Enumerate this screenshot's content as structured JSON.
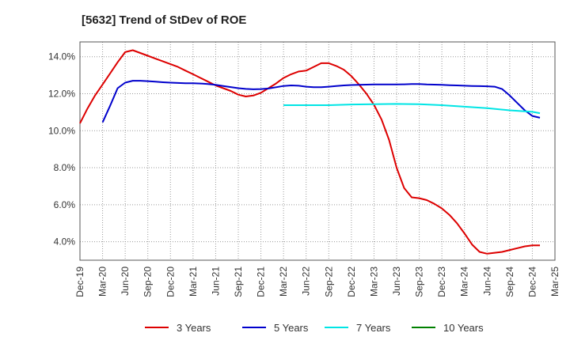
{
  "chart_data": {
    "type": "line",
    "title": "[5632]  Trend of StDev of ROE",
    "xlabel": "",
    "ylabel": "",
    "x_ticks": [
      "Dec-19",
      "Mar-20",
      "Jun-20",
      "Sep-20",
      "Dec-20",
      "Mar-21",
      "Jun-21",
      "Sep-21",
      "Dec-21",
      "Mar-22",
      "Jun-22",
      "Sep-22",
      "Dec-22",
      "Mar-23",
      "Jun-23",
      "Sep-23",
      "Dec-23",
      "Mar-24",
      "Jun-24",
      "Sep-24",
      "Dec-24",
      "Mar-25"
    ],
    "y_ticks": [
      4.0,
      6.0,
      8.0,
      10.0,
      12.0,
      14.0
    ],
    "y_tick_labels": [
      "4.0%",
      "6.0%",
      "8.0%",
      "10.0%",
      "12.0%",
      "14.0%"
    ],
    "ylim": [
      3.0,
      14.8
    ],
    "grid": true,
    "legend_position": "bottom",
    "series": [
      {
        "name": "3 Years",
        "color": "#dd0000",
        "points": [
          [
            "Dec-19",
            10.4
          ],
          [
            "Jan-20",
            11.2
          ],
          [
            "Feb-20",
            11.9
          ],
          [
            "Mar-20",
            12.5
          ],
          [
            "Apr-20",
            13.1
          ],
          [
            "May-20",
            13.7
          ],
          [
            "Jun-20",
            14.25
          ],
          [
            "Jul-20",
            14.35
          ],
          [
            "Aug-20",
            14.2
          ],
          [
            "Sep-20",
            14.05
          ],
          [
            "Oct-20",
            13.9
          ],
          [
            "Nov-20",
            13.75
          ],
          [
            "Dec-20",
            13.6
          ],
          [
            "Jan-21",
            13.45
          ],
          [
            "Feb-21",
            13.25
          ],
          [
            "Mar-21",
            13.05
          ],
          [
            "Apr-21",
            12.85
          ],
          [
            "May-21",
            12.65
          ],
          [
            "Jun-21",
            12.45
          ],
          [
            "Jul-21",
            12.3
          ],
          [
            "Aug-21",
            12.15
          ],
          [
            "Sep-21",
            11.95
          ],
          [
            "Oct-21",
            11.85
          ],
          [
            "Nov-21",
            11.9
          ],
          [
            "Dec-21",
            12.05
          ],
          [
            "Jan-22",
            12.3
          ],
          [
            "Feb-22",
            12.55
          ],
          [
            "Mar-22",
            12.85
          ],
          [
            "Apr-22",
            13.05
          ],
          [
            "May-22",
            13.2
          ],
          [
            "Jun-22",
            13.25
          ],
          [
            "Jul-22",
            13.45
          ],
          [
            "Aug-22",
            13.65
          ],
          [
            "Sep-22",
            13.65
          ],
          [
            "Oct-22",
            13.5
          ],
          [
            "Nov-22",
            13.3
          ],
          [
            "Dec-22",
            12.95
          ],
          [
            "Jan-23",
            12.5
          ],
          [
            "Feb-23",
            12.0
          ],
          [
            "Mar-23",
            11.4
          ],
          [
            "Apr-23",
            10.6
          ],
          [
            "May-23",
            9.5
          ],
          [
            "Jun-23",
            8.0
          ],
          [
            "Jul-23",
            6.9
          ],
          [
            "Aug-23",
            6.4
          ],
          [
            "Sep-23",
            6.35
          ],
          [
            "Oct-23",
            6.25
          ],
          [
            "Nov-23",
            6.05
          ],
          [
            "Dec-23",
            5.8
          ],
          [
            "Jan-24",
            5.45
          ],
          [
            "Feb-24",
            5.0
          ],
          [
            "Mar-24",
            4.45
          ],
          [
            "Apr-24",
            3.85
          ],
          [
            "May-24",
            3.45
          ],
          [
            "Jun-24",
            3.35
          ],
          [
            "Jul-24",
            3.4
          ],
          [
            "Aug-24",
            3.45
          ],
          [
            "Sep-24",
            3.55
          ],
          [
            "Oct-24",
            3.65
          ],
          [
            "Nov-24",
            3.75
          ],
          [
            "Dec-24",
            3.8
          ],
          [
            "Jan-25",
            3.8
          ]
        ]
      },
      {
        "name": "5 Years",
        "color": "#0000cc",
        "points": [
          [
            "Mar-20",
            10.45
          ],
          [
            "Apr-20",
            11.35
          ],
          [
            "May-20",
            12.3
          ],
          [
            "Jun-20",
            12.6
          ],
          [
            "Jul-20",
            12.7
          ],
          [
            "Aug-20",
            12.7
          ],
          [
            "Sep-20",
            12.68
          ],
          [
            "Oct-20",
            12.65
          ],
          [
            "Nov-20",
            12.62
          ],
          [
            "Dec-20",
            12.6
          ],
          [
            "Jan-21",
            12.58
          ],
          [
            "Feb-21",
            12.57
          ],
          [
            "Mar-21",
            12.57
          ],
          [
            "Apr-21",
            12.55
          ],
          [
            "May-21",
            12.52
          ],
          [
            "Jun-21",
            12.48
          ],
          [
            "Jul-21",
            12.42
          ],
          [
            "Aug-21",
            12.36
          ],
          [
            "Sep-21",
            12.3
          ],
          [
            "Oct-21",
            12.26
          ],
          [
            "Nov-21",
            12.24
          ],
          [
            "Dec-21",
            12.25
          ],
          [
            "Jan-22",
            12.28
          ],
          [
            "Feb-22",
            12.35
          ],
          [
            "Mar-22",
            12.42
          ],
          [
            "Apr-22",
            12.45
          ],
          [
            "May-22",
            12.43
          ],
          [
            "Jun-22",
            12.38
          ],
          [
            "Jul-22",
            12.35
          ],
          [
            "Aug-22",
            12.35
          ],
          [
            "Sep-22",
            12.38
          ],
          [
            "Oct-22",
            12.42
          ],
          [
            "Nov-22",
            12.45
          ],
          [
            "Dec-22",
            12.47
          ],
          [
            "Jan-23",
            12.48
          ],
          [
            "Feb-23",
            12.49
          ],
          [
            "Mar-23",
            12.5
          ],
          [
            "Apr-23",
            12.5
          ],
          [
            "May-23",
            12.5
          ],
          [
            "Jun-23",
            12.5
          ],
          [
            "Jul-23",
            12.51
          ],
          [
            "Aug-23",
            12.52
          ],
          [
            "Sep-23",
            12.52
          ],
          [
            "Oct-23",
            12.5
          ],
          [
            "Nov-23",
            12.49
          ],
          [
            "Dec-23",
            12.48
          ],
          [
            "Jan-24",
            12.46
          ],
          [
            "Feb-24",
            12.45
          ],
          [
            "Mar-24",
            12.43
          ],
          [
            "Apr-24",
            12.42
          ],
          [
            "May-24",
            12.41
          ],
          [
            "Jun-24",
            12.4
          ],
          [
            "Jul-24",
            12.38
          ],
          [
            "Aug-24",
            12.25
          ],
          [
            "Sep-24",
            11.9
          ],
          [
            "Oct-24",
            11.5
          ],
          [
            "Nov-24",
            11.1
          ],
          [
            "Dec-24",
            10.8
          ],
          [
            "Jan-25",
            10.7
          ]
        ]
      },
      {
        "name": "7 Years",
        "color": "#00e5e5",
        "points": [
          [
            "Mar-22",
            11.38
          ],
          [
            "Jun-22",
            11.38
          ],
          [
            "Sep-22",
            11.38
          ],
          [
            "Dec-22",
            11.42
          ],
          [
            "Mar-23",
            11.43
          ],
          [
            "Jun-23",
            11.45
          ],
          [
            "Sep-23",
            11.43
          ],
          [
            "Dec-23",
            11.38
          ],
          [
            "Mar-24",
            11.3
          ],
          [
            "Jun-24",
            11.22
          ],
          [
            "Sep-24",
            11.1
          ],
          [
            "Dec-24",
            11.02
          ],
          [
            "Jan-25",
            10.95
          ]
        ]
      },
      {
        "name": "10 Years",
        "color": "#008000",
        "points": []
      }
    ]
  }
}
